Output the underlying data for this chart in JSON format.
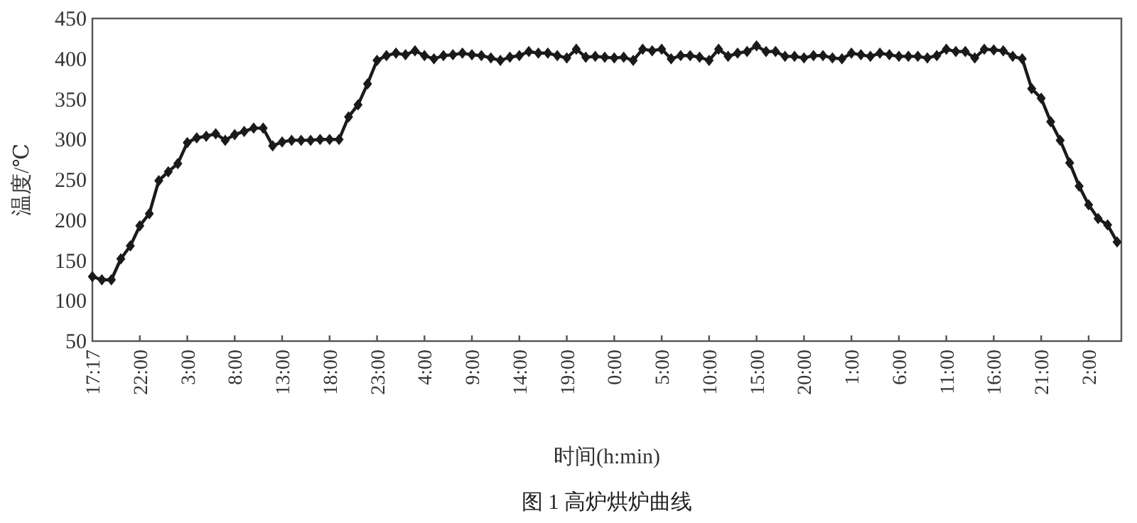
{
  "chart_data": {
    "type": "line",
    "xlabel": "时间(h:min)",
    "ylabel": "温度/℃",
    "annotations": [
      "图 1  高炉烘炉曲线"
    ],
    "categories": [
      "17:17",
      null,
      null,
      null,
      null,
      "22:00",
      null,
      null,
      null,
      null,
      "3:00",
      null,
      null,
      null,
      null,
      "8:00",
      null,
      null,
      null,
      null,
      "13:00",
      null,
      null,
      null,
      null,
      "18:00",
      null,
      null,
      null,
      null,
      "23:00",
      null,
      null,
      null,
      null,
      "4:00",
      null,
      null,
      null,
      null,
      "9:00",
      null,
      null,
      null,
      null,
      "14:00",
      null,
      null,
      null,
      null,
      "19:00",
      null,
      null,
      null,
      null,
      "0:00",
      null,
      null,
      null,
      null,
      "5:00",
      null,
      null,
      null,
      null,
      "10:00",
      null,
      null,
      null,
      null,
      "15:00",
      null,
      null,
      null,
      null,
      "20:00",
      null,
      null,
      null,
      null,
      "1:00",
      null,
      null,
      null,
      null,
      "6:00",
      null,
      null,
      null,
      null,
      "11:00",
      null,
      null,
      null,
      null,
      "16:00",
      null,
      null,
      null,
      null,
      "21:00",
      null,
      null,
      null,
      null,
      "2:00",
      null,
      null,
      null
    ],
    "series": [
      {
        "color": "#1a1a1a",
        "values": [
          130,
          126,
          126,
          152,
          168,
          193,
          208,
          249,
          260,
          270,
          296,
          302,
          304,
          307,
          299,
          306,
          310,
          314,
          314,
          292,
          297,
          299,
          299,
          299,
          300,
          300,
          300,
          328,
          343,
          369,
          398,
          404,
          407,
          405,
          410,
          404,
          400,
          404,
          405,
          407,
          405,
          404,
          401,
          398,
          402,
          404,
          409,
          407,
          407,
          404,
          401,
          412,
          402,
          403,
          402,
          401,
          402,
          398,
          412,
          410,
          412,
          400,
          404,
          404,
          402,
          398,
          412,
          403,
          407,
          409,
          416,
          409,
          409,
          403,
          403,
          401,
          404,
          404,
          401,
          400,
          407,
          405,
          403,
          407,
          405,
          403,
          403,
          403,
          401,
          404,
          412,
          409,
          409,
          401,
          412,
          411,
          410,
          403,
          400,
          363,
          351,
          322,
          299,
          271,
          242,
          219,
          202,
          194,
          173
        ]
      }
    ],
    "ylim": [
      50,
      450
    ],
    "yticks": [
      50,
      100,
      150,
      200,
      250,
      300,
      350,
      400,
      450
    ],
    "marker": "diamond",
    "line_style": "solid"
  }
}
